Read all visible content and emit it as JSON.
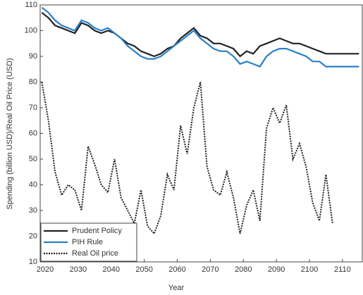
{
  "chart_data": {
    "type": "line",
    "x_label": "Year",
    "y_label": "Spending (billion USD)/Real Oil Price (USD)",
    "x": [
      2019,
      2021,
      2023,
      2025,
      2027,
      2029,
      2031,
      2033,
      2035,
      2037,
      2039,
      2041,
      2043,
      2045,
      2047,
      2049,
      2051,
      2053,
      2055,
      2057,
      2059,
      2061,
      2063,
      2065,
      2067,
      2069,
      2071,
      2073,
      2075,
      2077,
      2079,
      2081,
      2083,
      2085,
      2087,
      2089,
      2091,
      2093,
      2095,
      2097,
      2099,
      2101,
      2103,
      2105,
      2107,
      2109,
      2111,
      2113,
      2115
    ],
    "series": [
      {
        "name": "Prudent Policy",
        "color": "#222222",
        "dash": "solid",
        "values": [
          107,
          105,
          102,
          101,
          100,
          99,
          103,
          102,
          100,
          99,
          100,
          99,
          97,
          95,
          94,
          92,
          91,
          90,
          91,
          93,
          94,
          97,
          99,
          101,
          98,
          97,
          95,
          95,
          94,
          93,
          90,
          92,
          91,
          94,
          95,
          96,
          97,
          96,
          95,
          95,
          94,
          93,
          92,
          91,
          91,
          91,
          91,
          91,
          91
        ]
      },
      {
        "name": "PIH Rule",
        "color": "#2a7fc8",
        "dash": "solid",
        "values": [
          109,
          107,
          104,
          102,
          101,
          100,
          104,
          103,
          101,
          100,
          101,
          99,
          97,
          94,
          92,
          90,
          89,
          89,
          90,
          92,
          94,
          96,
          98,
          100,
          97,
          95,
          93,
          92,
          92,
          90,
          87,
          88,
          87,
          86,
          90,
          92,
          93,
          93,
          92,
          91,
          90,
          88,
          88,
          86,
          86,
          86,
          86,
          86,
          86
        ]
      },
      {
        "name": "Real Oil price",
        "color": "#222222",
        "dash": "dotted",
        "values": [
          80,
          65,
          45,
          36,
          40,
          38,
          30,
          55,
          48,
          40,
          37,
          50,
          35,
          30,
          25,
          38,
          24,
          21,
          28,
          44,
          38,
          63,
          52,
          70,
          80,
          47,
          38,
          36,
          45,
          35,
          21,
          32,
          38,
          26,
          62,
          70,
          64,
          71,
          50,
          56,
          47,
          33,
          26,
          44,
          25,
          null,
          null,
          null,
          null
        ]
      }
    ],
    "xlim": [
      2018.5,
      2116
    ],
    "xticks": [
      2020,
      2030,
      2040,
      2050,
      2060,
      2070,
      2080,
      2090,
      2100,
      2110
    ],
    "ylim": [
      10,
      110
    ],
    "yticks": [
      10,
      20,
      30,
      40,
      50,
      60,
      70,
      80,
      90,
      100,
      110
    ],
    "legend": "lower left"
  }
}
